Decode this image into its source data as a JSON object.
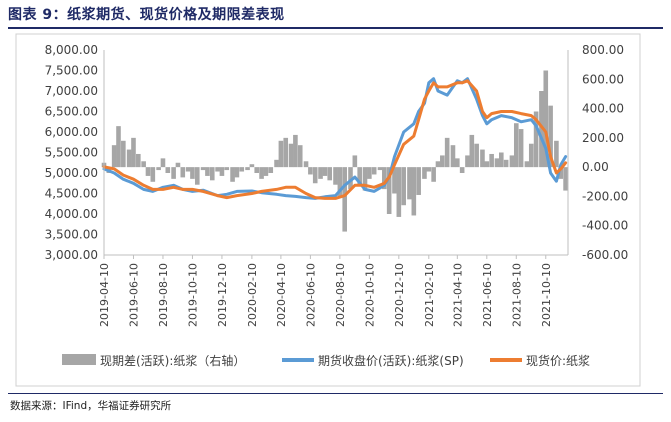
{
  "title": "图表 9：纸浆期货、现货价格及期限差表现",
  "source": "数据来源：IFind，华福证券研究所",
  "colors": {
    "title": "#1f2a66",
    "basis_bar": "#a6a6a6",
    "futures_line": "#5b9bd5",
    "spot_line": "#ed7d31",
    "axis": "#bfbfbf",
    "text": "#404040"
  },
  "chart_data": {
    "type": "combo-bar-line",
    "x_tick_labels": [
      "2019-04-10",
      "2019-06-10",
      "2019-08-10",
      "2019-10-10",
      "2019-12-10",
      "2020-02-10",
      "2020-04-10",
      "2020-06-10",
      "2020-08-10",
      "2020-10-10",
      "2020-12-10",
      "2021-02-10",
      "2021-04-10",
      "2021-06-10",
      "2021-08-10",
      "2021-10-10"
    ],
    "y_left": {
      "ticks": [
        "8,000.00",
        "7,500.00",
        "7,000.00",
        "6,500.00",
        "6,000.00",
        "5,500.00",
        "5,000.00",
        "4,500.00",
        "4,000.00",
        "3,500.00",
        "3,000.00"
      ],
      "range": [
        3000,
        8000
      ]
    },
    "y_right": {
      "ticks": [
        "800.00",
        "600.00",
        "400.00",
        "200.00",
        "0.00",
        "-200.00",
        "-400.00",
        "-600.00"
      ],
      "range": [
        -600,
        800
      ]
    },
    "legend": [
      "现期差(活跃):纸浆（右轴）",
      "期货收盘价(活跃):纸浆(SP)",
      "现货价:纸浆"
    ],
    "legend_position": "bottom",
    "series": [
      {
        "name": "现期差(活跃):纸浆（右轴）",
        "type": "bar",
        "axis": "right",
        "points": [
          [
            "2019-04-10",
            30
          ],
          [
            "2019-04-20",
            -40
          ],
          [
            "2019-05-01",
            150
          ],
          [
            "2019-05-10",
            280
          ],
          [
            "2019-05-20",
            180
          ],
          [
            "2019-06-01",
            120
          ],
          [
            "2019-06-10",
            200
          ],
          [
            "2019-06-20",
            90
          ],
          [
            "2019-07-01",
            40
          ],
          [
            "2019-07-10",
            -60
          ],
          [
            "2019-07-20",
            -100
          ],
          [
            "2019-08-01",
            -20
          ],
          [
            "2019-08-10",
            60
          ],
          [
            "2019-08-20",
            -40
          ],
          [
            "2019-09-01",
            -80
          ],
          [
            "2019-09-10",
            30
          ],
          [
            "2019-09-20",
            -70
          ],
          [
            "2019-10-01",
            -30
          ],
          [
            "2019-10-10",
            -80
          ],
          [
            "2019-10-20",
            -120
          ],
          [
            "2019-11-01",
            -20
          ],
          [
            "2019-11-10",
            -60
          ],
          [
            "2019-11-20",
            -90
          ],
          [
            "2019-12-01",
            -30
          ],
          [
            "2019-12-10",
            -60
          ],
          [
            "2019-12-20",
            -20
          ],
          [
            "2020-01-01",
            -100
          ],
          [
            "2020-01-10",
            -70
          ],
          [
            "2020-01-20",
            -30
          ],
          [
            "2020-02-01",
            -20
          ],
          [
            "2020-02-10",
            20
          ],
          [
            "2020-02-20",
            -40
          ],
          [
            "2020-03-01",
            -80
          ],
          [
            "2020-03-10",
            -60
          ],
          [
            "2020-03-20",
            -40
          ],
          [
            "2020-04-01",
            50
          ],
          [
            "2020-04-10",
            180
          ],
          [
            "2020-04-20",
            200
          ],
          [
            "2020-05-01",
            160
          ],
          [
            "2020-05-10",
            220
          ],
          [
            "2020-05-20",
            150
          ],
          [
            "2020-06-01",
            40
          ],
          [
            "2020-06-10",
            -50
          ],
          [
            "2020-06-20",
            -110
          ],
          [
            "2020-07-01",
            -80
          ],
          [
            "2020-07-10",
            -60
          ],
          [
            "2020-07-20",
            -90
          ],
          [
            "2020-08-01",
            -120
          ],
          [
            "2020-08-10",
            -200
          ],
          [
            "2020-08-20",
            -440
          ],
          [
            "2020-09-01",
            -150
          ],
          [
            "2020-09-10",
            80
          ],
          [
            "2020-09-20",
            -120
          ],
          [
            "2020-10-01",
            -160
          ],
          [
            "2020-10-10",
            -80
          ],
          [
            "2020-10-20",
            -50
          ],
          [
            "2020-11-01",
            -20
          ],
          [
            "2020-11-10",
            -150
          ],
          [
            "2020-11-20",
            -320
          ],
          [
            "2020-12-01",
            -180
          ],
          [
            "2020-12-10",
            -340
          ],
          [
            "2020-12-20",
            -260
          ],
          [
            "2021-01-01",
            -220
          ],
          [
            "2021-01-10",
            -330
          ],
          [
            "2021-01-20",
            -190
          ],
          [
            "2021-02-01",
            -80
          ],
          [
            "2021-02-10",
            -30
          ],
          [
            "2021-02-20",
            -100
          ],
          [
            "2021-03-01",
            40
          ],
          [
            "2021-03-10",
            80
          ],
          [
            "2021-03-20",
            200
          ],
          [
            "2021-04-01",
            150
          ],
          [
            "2021-04-10",
            60
          ],
          [
            "2021-04-20",
            -40
          ],
          [
            "2021-05-01",
            80
          ],
          [
            "2021-05-10",
            220
          ],
          [
            "2021-05-20",
            160
          ],
          [
            "2021-06-01",
            120
          ],
          [
            "2021-06-10",
            40
          ],
          [
            "2021-06-20",
            90
          ],
          [
            "2021-07-01",
            60
          ],
          [
            "2021-07-10",
            100
          ],
          [
            "2021-07-20",
            50
          ],
          [
            "2021-08-01",
            80
          ],
          [
            "2021-08-10",
            300
          ],
          [
            "2021-08-20",
            260
          ],
          [
            "2021-09-01",
            40
          ],
          [
            "2021-09-10",
            160
          ],
          [
            "2021-09-20",
            380
          ],
          [
            "2021-10-01",
            520
          ],
          [
            "2021-10-10",
            660
          ],
          [
            "2021-10-20",
            420
          ],
          [
            "2021-11-01",
            180
          ],
          [
            "2021-11-10",
            -80
          ],
          [
            "2021-11-20",
            -160
          ]
        ]
      },
      {
        "name": "期货收盘价(活跃):纸浆(SP)",
        "type": "line",
        "axis": "left",
        "points": [
          [
            "2019-04-10",
            5100
          ],
          [
            "2019-05-01",
            5000
          ],
          [
            "2019-05-20",
            4850
          ],
          [
            "2019-06-10",
            4750
          ],
          [
            "2019-07-01",
            4600
          ],
          [
            "2019-07-20",
            4550
          ],
          [
            "2019-08-10",
            4650
          ],
          [
            "2019-09-01",
            4700
          ],
          [
            "2019-09-20",
            4600
          ],
          [
            "2019-10-10",
            4550
          ],
          [
            "2019-11-01",
            4580
          ],
          [
            "2019-12-01",
            4450
          ],
          [
            "2019-12-20",
            4480
          ],
          [
            "2020-01-10",
            4550
          ],
          [
            "2020-02-10",
            4560
          ],
          [
            "2020-03-01",
            4520
          ],
          [
            "2020-04-01",
            4480
          ],
          [
            "2020-04-20",
            4450
          ],
          [
            "2020-05-10",
            4430
          ],
          [
            "2020-06-01",
            4400
          ],
          [
            "2020-06-20",
            4380
          ],
          [
            "2020-07-10",
            4420
          ],
          [
            "2020-08-01",
            4450
          ],
          [
            "2020-08-20",
            4700
          ],
          [
            "2020-09-10",
            4900
          ],
          [
            "2020-10-01",
            4600
          ],
          [
            "2020-10-20",
            4550
          ],
          [
            "2020-11-10",
            4700
          ],
          [
            "2020-11-20",
            4900
          ],
          [
            "2020-12-01",
            5400
          ],
          [
            "2020-12-20",
            6000
          ],
          [
            "2021-01-10",
            6200
          ],
          [
            "2021-01-20",
            6500
          ],
          [
            "2021-02-01",
            6700
          ],
          [
            "2021-02-10",
            7200
          ],
          [
            "2021-02-20",
            7300
          ],
          [
            "2021-03-01",
            7000
          ],
          [
            "2021-03-20",
            6900
          ],
          [
            "2021-04-10",
            7250
          ],
          [
            "2021-04-20",
            7200
          ],
          [
            "2021-05-01",
            7300
          ],
          [
            "2021-05-20",
            6800
          ],
          [
            "2021-06-01",
            6400
          ],
          [
            "2021-06-10",
            6200
          ],
          [
            "2021-06-20",
            6300
          ],
          [
            "2021-07-10",
            6400
          ],
          [
            "2021-08-01",
            6350
          ],
          [
            "2021-08-20",
            6250
          ],
          [
            "2021-09-10",
            6300
          ],
          [
            "2021-09-20",
            6150
          ],
          [
            "2021-10-10",
            5600
          ],
          [
            "2021-10-20",
            5000
          ],
          [
            "2021-11-01",
            4800
          ],
          [
            "2021-11-10",
            5200
          ],
          [
            "2021-11-20",
            5400
          ]
        ]
      },
      {
        "name": "现货价:纸浆",
        "type": "line",
        "axis": "left",
        "points": [
          [
            "2019-04-10",
            5150
          ],
          [
            "2019-05-01",
            5100
          ],
          [
            "2019-05-20",
            4950
          ],
          [
            "2019-06-10",
            4850
          ],
          [
            "2019-07-01",
            4700
          ],
          [
            "2019-07-20",
            4600
          ],
          [
            "2019-08-10",
            4600
          ],
          [
            "2019-09-01",
            4650
          ],
          [
            "2019-09-20",
            4600
          ],
          [
            "2019-10-10",
            4600
          ],
          [
            "2019-11-01",
            4550
          ],
          [
            "2019-12-01",
            4450
          ],
          [
            "2019-12-20",
            4400
          ],
          [
            "2020-01-10",
            4450
          ],
          [
            "2020-02-10",
            4500
          ],
          [
            "2020-03-01",
            4550
          ],
          [
            "2020-04-01",
            4600
          ],
          [
            "2020-04-20",
            4650
          ],
          [
            "2020-05-10",
            4650
          ],
          [
            "2020-06-01",
            4500
          ],
          [
            "2020-06-20",
            4400
          ],
          [
            "2020-07-10",
            4380
          ],
          [
            "2020-08-01",
            4380
          ],
          [
            "2020-08-20",
            4450
          ],
          [
            "2020-09-10",
            4700
          ],
          [
            "2020-10-01",
            4700
          ],
          [
            "2020-10-20",
            4650
          ],
          [
            "2020-11-10",
            4750
          ],
          [
            "2020-11-20",
            4900
          ],
          [
            "2020-12-01",
            5200
          ],
          [
            "2020-12-20",
            5700
          ],
          [
            "2021-01-10",
            5900
          ],
          [
            "2021-01-20",
            6300
          ],
          [
            "2021-02-01",
            6800
          ],
          [
            "2021-02-10",
            7000
          ],
          [
            "2021-02-20",
            7200
          ],
          [
            "2021-03-01",
            7100
          ],
          [
            "2021-03-20",
            7100
          ],
          [
            "2021-04-10",
            7200
          ],
          [
            "2021-04-20",
            7200
          ],
          [
            "2021-05-01",
            7250
          ],
          [
            "2021-05-20",
            7000
          ],
          [
            "2021-06-01",
            6500
          ],
          [
            "2021-06-10",
            6350
          ],
          [
            "2021-06-20",
            6450
          ],
          [
            "2021-07-10",
            6500
          ],
          [
            "2021-08-01",
            6500
          ],
          [
            "2021-08-20",
            6450
          ],
          [
            "2021-09-10",
            6400
          ],
          [
            "2021-09-20",
            6300
          ],
          [
            "2021-10-10",
            6000
          ],
          [
            "2021-10-20",
            5400
          ],
          [
            "2021-11-01",
            5000
          ],
          [
            "2021-11-10",
            5100
          ],
          [
            "2021-11-20",
            5250
          ]
        ]
      }
    ]
  }
}
